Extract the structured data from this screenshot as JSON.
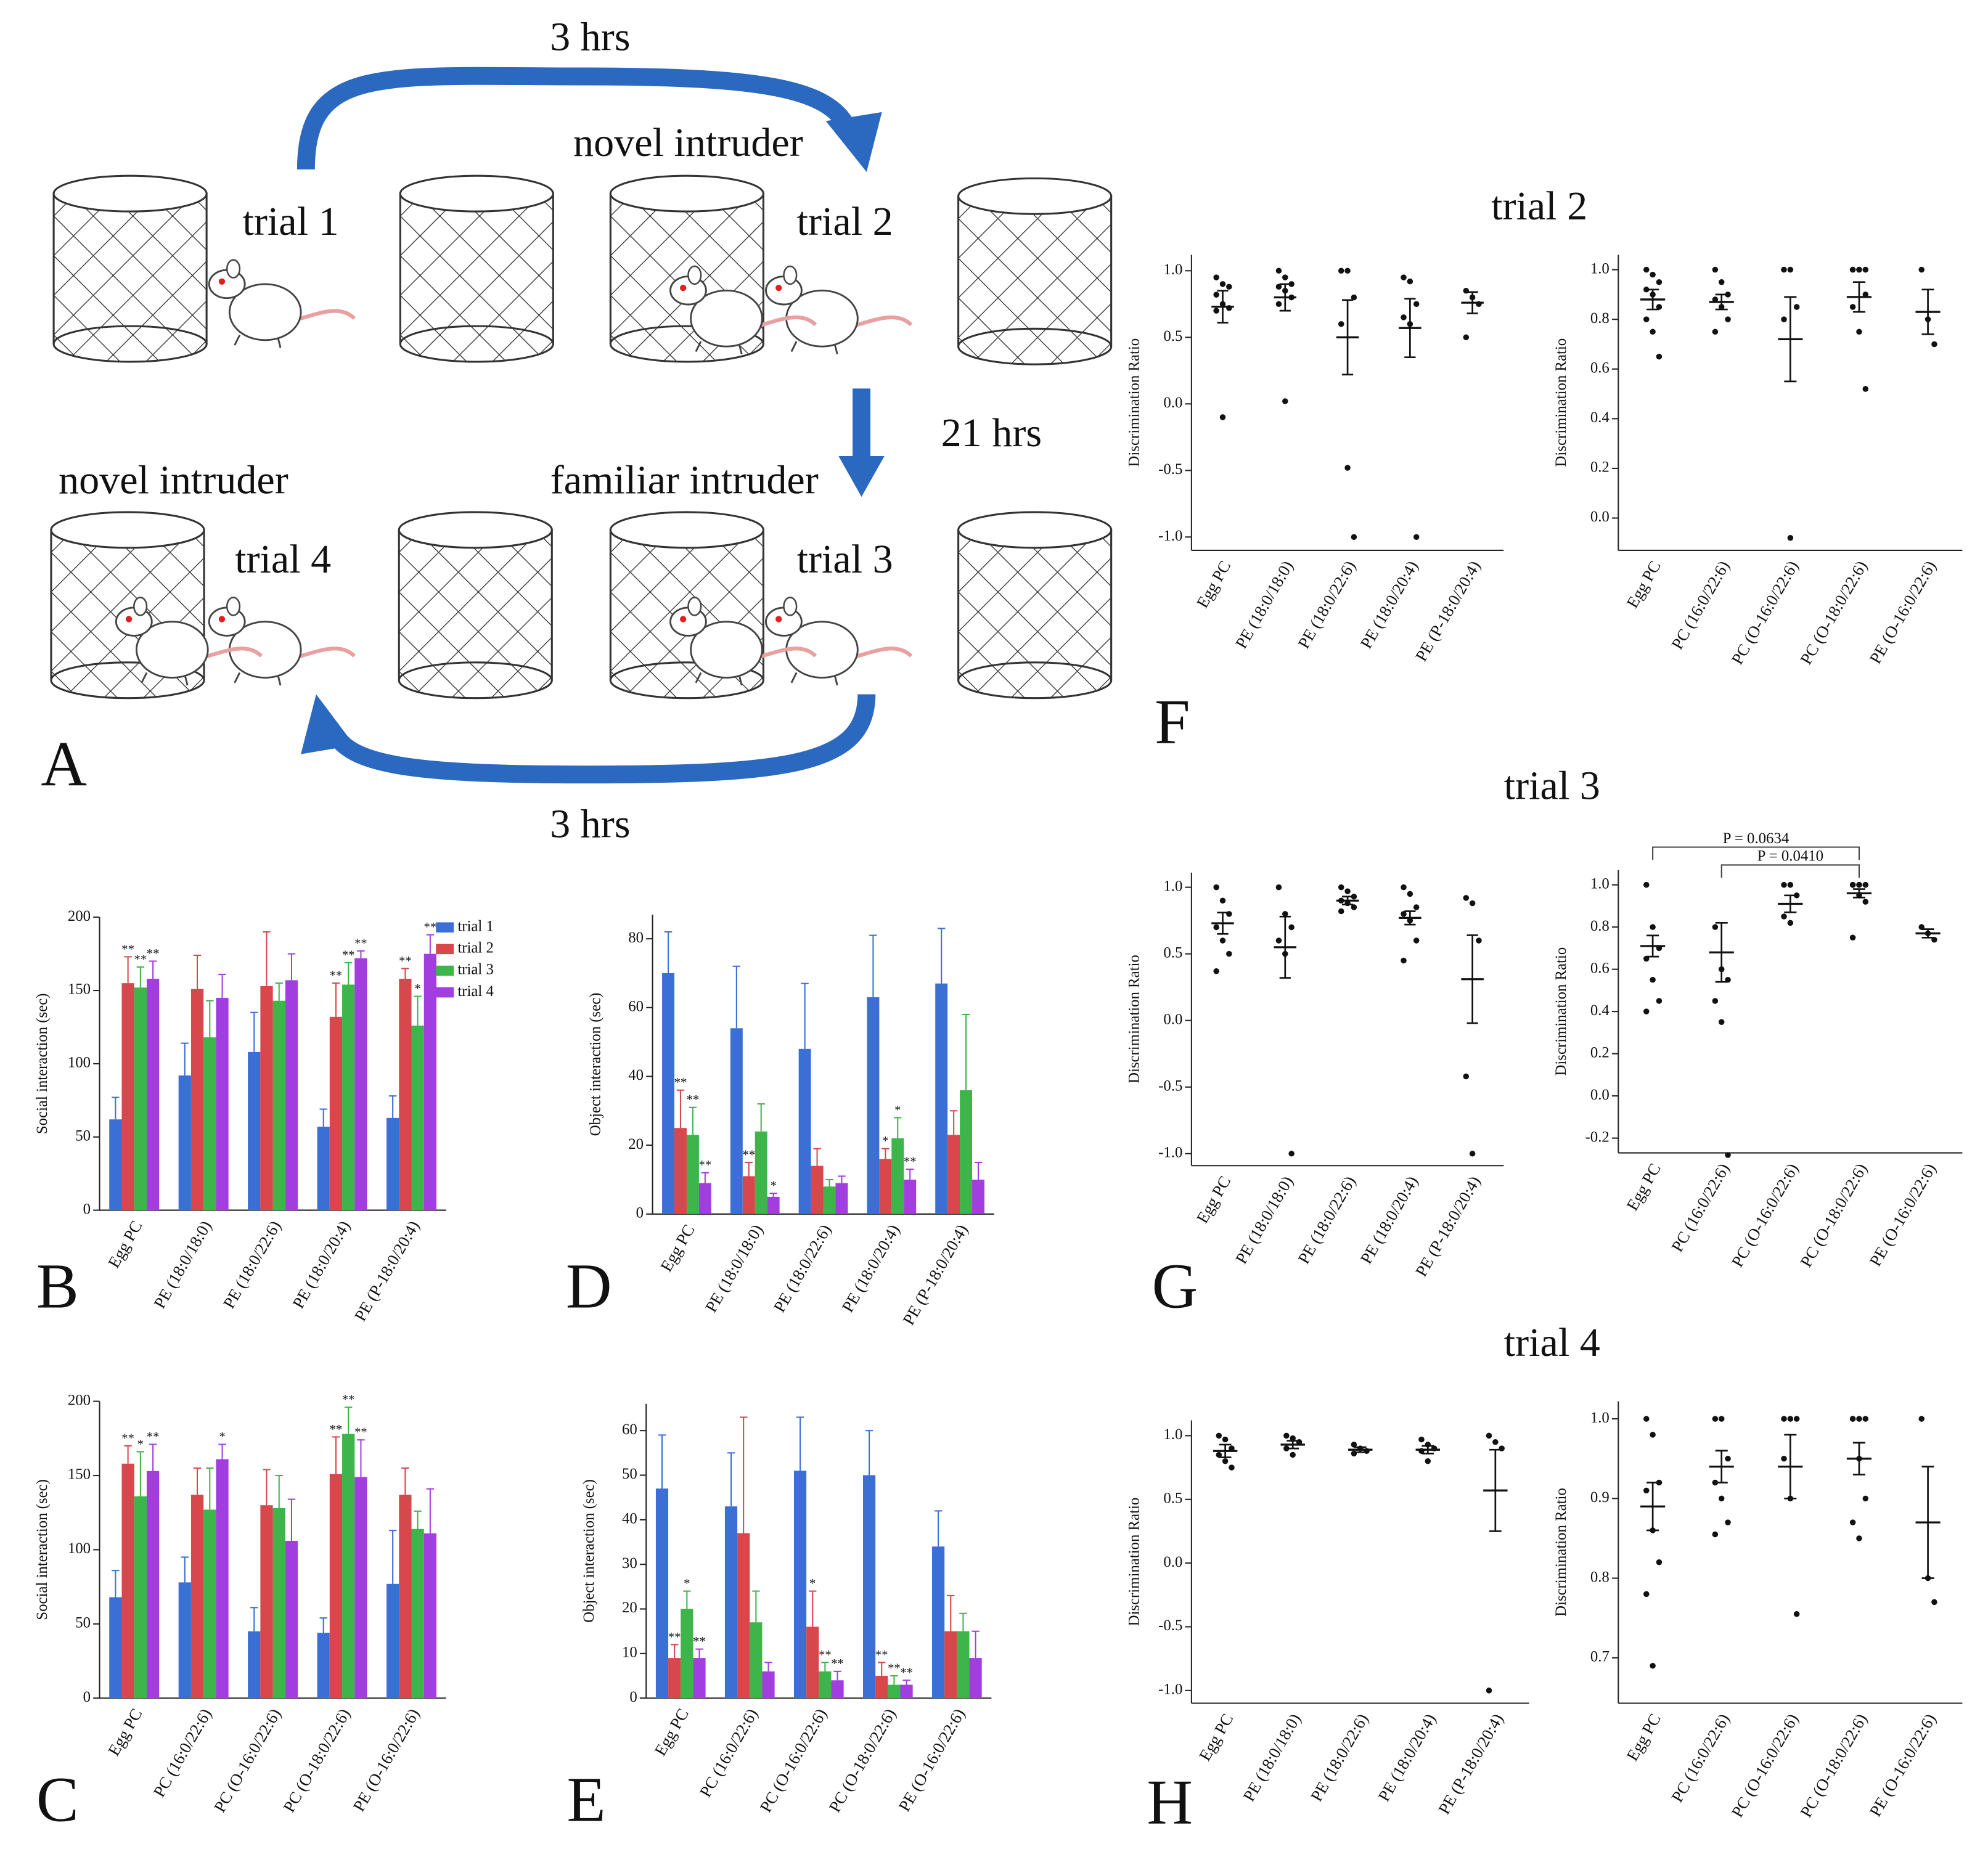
{
  "diagram": {
    "label": "A",
    "top_interval": "3 hrs",
    "middle_interval": "21 hrs",
    "bottom_interval": "3 hrs",
    "trial_1": "trial 1",
    "trial_2": "trial 2",
    "trial_3": "trial 3",
    "trial_4": "trial 4",
    "trial_2_intruder": "novel intruder",
    "trial_3_intruder": "familiar intruder",
    "trial_4_intruder": "novel intruder"
  },
  "chart_data": [
    {
      "type": "bar",
      "label": "B",
      "ylabel": "Social interaction (sec)",
      "ylim": [
        0,
        200
      ],
      "yticks": [
        0,
        50,
        100,
        150,
        200
      ],
      "legend": "upper right",
      "categories": [
        "Egg PC",
        "PE (18:0/18:0)",
        "PE (18:0/22:6)",
        "PE (18:0/20:4)",
        "PE (P-18:0/20:4)"
      ],
      "series": [
        {
          "name": "trial 1",
          "color": "#3b6fd6",
          "values": [
            62,
            92,
            108,
            57,
            63
          ],
          "errors": [
            15,
            22,
            27,
            12,
            15
          ],
          "annotations": [
            null,
            null,
            null,
            null,
            null
          ]
        },
        {
          "name": "trial 2",
          "color": "#d8474c",
          "values": [
            155,
            151,
            153,
            132,
            158
          ],
          "errors": [
            18,
            23,
            37,
            23,
            7
          ],
          "annotations": [
            "**",
            null,
            null,
            "**",
            "**"
          ]
        },
        {
          "name": "trial 3",
          "color": "#3db54a",
          "values": [
            152,
            118,
            143,
            154,
            126
          ],
          "errors": [
            14,
            25,
            12,
            15,
            20
          ],
          "annotations": [
            "**",
            null,
            null,
            "**",
            "*"
          ]
        },
        {
          "name": "trial 4",
          "color": "#a23ee0",
          "values": [
            158,
            145,
            157,
            172,
            175
          ],
          "errors": [
            12,
            16,
            18,
            5,
            13
          ],
          "annotations": [
            "**",
            null,
            null,
            "**",
            "**"
          ]
        }
      ]
    },
    {
      "type": "bar",
      "label": "C",
      "ylabel": "Social interaction (sec)",
      "ylim": [
        0,
        200
      ],
      "yticks": [
        0,
        50,
        100,
        150,
        200
      ],
      "categories": [
        "Egg PC",
        "PC (16:0/22:6)",
        "PC (O-16:0/22:6)",
        "PC (O-18:0/22:6)",
        "PE (O-16:0/22:6)"
      ],
      "series": [
        {
          "name": "trial 1",
          "color": "#3b6fd6",
          "values": [
            68,
            78,
            45,
            44,
            77
          ],
          "errors": [
            18,
            17,
            16,
            10,
            36
          ],
          "annotations": [
            null,
            null,
            null,
            null,
            null
          ]
        },
        {
          "name": "trial 2",
          "color": "#d8474c",
          "values": [
            158,
            137,
            130,
            151,
            137
          ],
          "errors": [
            12,
            18,
            24,
            25,
            18
          ],
          "annotations": [
            "**",
            null,
            null,
            "**",
            null
          ]
        },
        {
          "name": "trial 3",
          "color": "#3db54a",
          "values": [
            136,
            127,
            128,
            178,
            114
          ],
          "errors": [
            30,
            28,
            22,
            18,
            12
          ],
          "annotations": [
            "*",
            null,
            null,
            "**",
            null
          ]
        },
        {
          "name": "trial 4",
          "color": "#a23ee0",
          "values": [
            153,
            161,
            106,
            149,
            111
          ],
          "errors": [
            18,
            10,
            28,
            25,
            30
          ],
          "annotations": [
            "**",
            "*",
            null,
            "**",
            null
          ]
        }
      ]
    },
    {
      "type": "bar",
      "label": "D",
      "ylabel": "Object interaction (sec)",
      "ylim": [
        0,
        87
      ],
      "yticks": [
        0,
        20,
        40,
        60,
        80
      ],
      "categories": [
        "Egg PC",
        "PE (18:0/18:0)",
        "PE (18:0/22:6)",
        "PE (18:0/20:4)",
        "PE (P-18:0/20:4)"
      ],
      "series": [
        {
          "name": "trial 1",
          "color": "#3b6fd6",
          "values": [
            70,
            54,
            48,
            63,
            67
          ],
          "errors": [
            12,
            18,
            19,
            18,
            16
          ],
          "annotations": [
            null,
            null,
            null,
            null,
            null
          ]
        },
        {
          "name": "trial 2",
          "color": "#d8474c",
          "values": [
            25,
            11,
            14,
            16,
            23
          ],
          "errors": [
            11,
            4,
            5,
            3,
            7
          ],
          "annotations": [
            "**",
            "**",
            null,
            "*",
            null
          ]
        },
        {
          "name": "trial 3",
          "color": "#3db54a",
          "values": [
            23,
            24,
            8,
            22,
            36
          ],
          "errors": [
            8,
            8,
            2,
            6,
            22
          ],
          "annotations": [
            "**",
            null,
            null,
            "*",
            null
          ]
        },
        {
          "name": "trial 4",
          "color": "#a23ee0",
          "values": [
            9,
            5,
            9,
            10,
            10
          ],
          "errors": [
            3,
            1,
            2,
            3,
            5
          ],
          "annotations": [
            "**",
            "*",
            null,
            "**",
            null
          ]
        }
      ]
    },
    {
      "type": "bar",
      "label": "E",
      "ylabel": "Object interaction (sec)",
      "ylim": [
        0,
        66
      ],
      "yticks": [
        0,
        10,
        20,
        30,
        40,
        50,
        60
      ],
      "categories": [
        "Egg PC",
        "PC (16:0/22:6)",
        "PC (O-16:0/22:6)",
        "PC (O-18:0/22:6)",
        "PE (O-16:0/22:6)"
      ],
      "series": [
        {
          "name": "trial 1",
          "color": "#3b6fd6",
          "values": [
            47,
            43,
            51,
            50,
            34
          ],
          "errors": [
            12,
            12,
            12,
            10,
            8
          ],
          "annotations": [
            null,
            null,
            null,
            null,
            null
          ]
        },
        {
          "name": "trial 2",
          "color": "#d8474c",
          "values": [
            9,
            37,
            16,
            5,
            15
          ],
          "errors": [
            3,
            26,
            8,
            3,
            8
          ],
          "annotations": [
            "**",
            null,
            "*",
            "**",
            null
          ]
        },
        {
          "name": "trial 3",
          "color": "#3db54a",
          "values": [
            20,
            17,
            6,
            3,
            15
          ],
          "errors": [
            4,
            7,
            2,
            2,
            4
          ],
          "annotations": [
            "*",
            null,
            "**",
            "**",
            null
          ]
        },
        {
          "name": "trial 4",
          "color": "#a23ee0",
          "values": [
            9,
            6,
            4,
            3,
            9
          ],
          "errors": [
            2,
            2,
            2,
            1,
            6
          ],
          "annotations": [
            "**",
            null,
            "**",
            "**",
            null
          ]
        }
      ]
    },
    {
      "type": "strip",
      "label": "F",
      "title": "trial 2",
      "ylabel": "Discrimination Ratio",
      "ylim": [
        -1.1,
        1.12
      ],
      "yticks": [
        {
          "value": -1,
          "label": "-1.0"
        },
        -0.5,
        {
          "value": 0,
          "label": "0.0"
        },
        0.5,
        {
          "value": 1,
          "label": "1.0"
        }
      ],
      "categories": [
        "Egg PC",
        "PE (18:0/18:0)",
        "PE (18:0/22:6)",
        "PE (18:0/20:4)",
        "PE (P-18:0/20:4)"
      ],
      "means": [
        0.73,
        0.8,
        0.5,
        0.57,
        0.76
      ],
      "errors": [
        0.12,
        0.1,
        0.28,
        0.22,
        0.08
      ],
      "points": [
        [
          0.95,
          0.9,
          0.88,
          0.82,
          0.75,
          0.72,
          0.7,
          -0.1
        ],
        [
          1,
          0.95,
          0.9,
          0.88,
          0.85,
          0.8,
          0.75,
          0.02
        ],
        [
          1,
          1,
          0.8,
          0.6,
          -0.48,
          -1
        ],
        [
          0.95,
          0.92,
          0.75,
          0.65,
          0.6,
          -1
        ],
        [
          0.85,
          0.8,
          0.75,
          0.5
        ]
      ]
    },
    {
      "type": "strip",
      "ylabel": "Discrimination Ratio",
      "ylim": [
        -0.13,
        1.06
      ],
      "yticks": [
        {
          "value": 0,
          "label": "0.0"
        },
        0.2,
        0.4,
        0.6,
        0.8,
        {
          "value": 1,
          "label": "1.0"
        }
      ],
      "categories": [
        "Egg PC",
        "PC (16:0/22:6)",
        "PC (O-16:0/22:6)",
        "PC (O-18:0/22:6)",
        "PE (O-16:0/22:6)"
      ],
      "means": [
        0.88,
        0.87,
        0.72,
        0.89,
        0.83
      ],
      "errors": [
        0.04,
        0.03,
        0.17,
        0.06,
        0.09
      ],
      "points": [
        [
          1,
          0.98,
          0.95,
          0.92,
          0.9,
          0.85,
          0.8,
          0.75,
          0.65
        ],
        [
          1,
          0.95,
          0.9,
          0.88,
          0.85,
          0.8,
          0.75
        ],
        [
          1,
          1,
          0.85,
          0.8,
          -0.08
        ],
        [
          1,
          1,
          1,
          1,
          1,
          0.9,
          0.85,
          0.75,
          0.52
        ],
        [
          1,
          0.8,
          0.7
        ]
      ]
    },
    {
      "type": "strip",
      "label": "G",
      "title": "trial 3",
      "ylabel": "Discrimination Ratio",
      "ylim": [
        -1.09,
        1.11
      ],
      "yticks": [
        {
          "value": -1,
          "label": "-1.0"
        },
        -0.5,
        {
          "value": 0,
          "label": "0.0"
        },
        0.5,
        {
          "value": 1,
          "label": "1.0"
        }
      ],
      "categories": [
        "Egg PC",
        "PE (18:0/18:0)",
        "PE (18:0/22:6)",
        "PE (18:0/20:4)",
        "PE (P-18:0/20:4)"
      ],
      "means": [
        0.73,
        0.55,
        0.9,
        0.77,
        0.31
      ],
      "errors": [
        0.08,
        0.23,
        0.03,
        0.05,
        0.33
      ],
      "points": [
        [
          1,
          0.9,
          0.8,
          0.7,
          0.6,
          0.5,
          0.37
        ],
        [
          1,
          0.8,
          0.7,
          0.6,
          0.5,
          -1
        ],
        [
          1,
          0.97,
          0.93,
          0.9,
          0.88,
          0.85,
          0.82
        ],
        [
          1,
          0.95,
          0.85,
          0.8,
          0.75,
          0.6,
          0.45
        ],
        [
          0.92,
          0.88,
          0.6,
          -0.42,
          -1
        ]
      ]
    },
    {
      "type": "strip",
      "ylabel": "Discrimination Ratio",
      "ylim": [
        -0.27,
        1.07
      ],
      "yticks": [
        -0.2,
        {
          "value": 0,
          "label": "0.0"
        },
        0.2,
        0.4,
        0.6,
        0.8,
        {
          "value": 1,
          "label": "1.0"
        }
      ],
      "categories": [
        "Egg PC",
        "PC (16:0/22:6)",
        "PC (O-16:0/22:6)",
        "PC (O-18:0/22:6)",
        "PE (O-16:0/22:6)"
      ],
      "means": [
        0.71,
        0.68,
        0.91,
        0.96,
        0.77
      ],
      "errors": [
        0.05,
        0.14,
        0.04,
        0.02,
        0.02
      ],
      "points": [
        [
          1,
          0.8,
          0.7,
          0.65,
          0.55,
          0.45,
          0.4
        ],
        [
          0.8,
          0.6,
          0.55,
          0.45,
          0.35,
          -0.28
        ],
        [
          1,
          1,
          0.95,
          0.85,
          0.82
        ],
        [
          1,
          1,
          1,
          1,
          1,
          1,
          1,
          0.95,
          0.92,
          0.75
        ],
        [
          0.8,
          0.77,
          0.74
        ]
      ],
      "brackets": [
        {
          "label": "P = 0.0634",
          "from": 0,
          "to": 3
        },
        {
          "label": "P = 0.0410",
          "from": 1,
          "to": 3
        }
      ]
    },
    {
      "type": "strip",
      "label": "H",
      "title": "trial 4",
      "ylabel": "Discrimination Ratio",
      "ylim": [
        -1.1,
        1.12
      ],
      "yticks": [
        {
          "value": -1,
          "label": "-1.0"
        },
        -0.5,
        {
          "value": 0,
          "label": "0.0"
        },
        0.5,
        {
          "value": 1,
          "label": "1.0"
        }
      ],
      "categories": [
        "Egg PC",
        "PE (18:0/18:0)",
        "PE (18:0/22:6)",
        "PE (18:0/20:4)",
        "PE (P-18:0/20:4)"
      ],
      "means": [
        0.88,
        0.93,
        0.89,
        0.89,
        0.57
      ],
      "errors": [
        0.05,
        0.03,
        0.02,
        0.03,
        0.32
      ],
      "points": [
        [
          1,
          0.97,
          0.9,
          0.85,
          0.8,
          0.75
        ],
        [
          1,
          0.98,
          0.95,
          0.9,
          0.85
        ],
        [
          0.93,
          0.9,
          0.88,
          0.86
        ],
        [
          0.97,
          0.93,
          0.9,
          0.88,
          0.8
        ],
        [
          1,
          0.95,
          0.9,
          -1
        ]
      ]
    },
    {
      "type": "strip",
      "ylabel": "Discrimination Ratio",
      "ylim": [
        0.643,
        1.022
      ],
      "yticks": [
        0.7,
        0.8,
        0.9,
        {
          "value": 1,
          "label": "1.0"
        }
      ],
      "categories": [
        "Egg PC",
        "PC (16:0/22:6)",
        "PC (O-16:0/22:6)",
        "PC (O-18:0/22:6)",
        "PE (O-16:0/22:6)"
      ],
      "means": [
        0.89,
        0.94,
        0.94,
        0.95,
        0.87
      ],
      "errors": [
        0.03,
        0.02,
        0.04,
        0.02,
        0.07
      ],
      "points": [
        [
          1,
          0.98,
          0.92,
          0.91,
          0.86,
          0.82,
          0.78,
          0.69
        ],
        [
          1,
          1,
          0.95,
          0.92,
          0.9,
          0.87,
          0.855
        ],
        [
          1,
          1,
          1,
          0.95,
          0.9,
          0.755
        ],
        [
          1,
          1,
          1,
          1,
          0.95,
          0.9,
          0.87,
          0.85
        ],
        [
          1,
          0.8,
          0.77
        ]
      ]
    }
  ]
}
